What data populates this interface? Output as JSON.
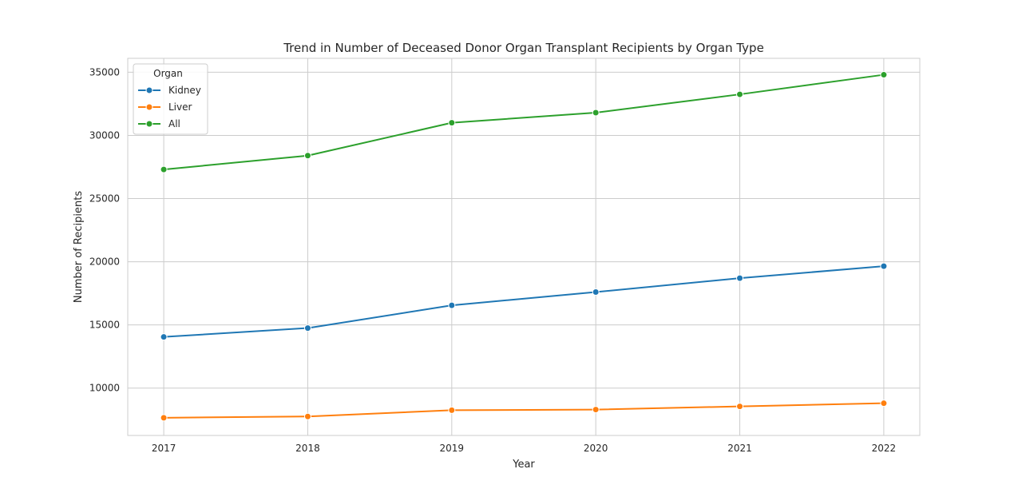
{
  "chart_data": {
    "type": "line",
    "title": "Trend in Number of Deceased Donor Organ Transplant Recipients by Organ Type",
    "xlabel": "Year",
    "ylabel": "Number of Recipients",
    "x": [
      2017,
      2018,
      2019,
      2020,
      2021,
      2022
    ],
    "x_tick_labels": [
      "2017",
      "2018",
      "2019",
      "2020",
      "2021",
      "2022"
    ],
    "xlim": [
      2016.75,
      2022.25
    ],
    "ylim": [
      6250,
      36100
    ],
    "y_ticks": [
      10000,
      15000,
      20000,
      25000,
      30000,
      35000
    ],
    "y_tick_labels": [
      "10000",
      "15000",
      "20000",
      "25000",
      "30000",
      "35000"
    ],
    "grid": true,
    "legend": {
      "title": "Organ",
      "placement": "top-left"
    },
    "series": [
      {
        "name": "Kidney",
        "color": "#1f77b4",
        "values": [
          14050,
          14750,
          16550,
          17600,
          18700,
          19650
        ]
      },
      {
        "name": "Liver",
        "color": "#ff7f0e",
        "values": [
          7650,
          7750,
          8250,
          8300,
          8550,
          8800
        ]
      },
      {
        "name": "All",
        "color": "#2ca02c",
        "values": [
          27300,
          28400,
          31000,
          31800,
          33250,
          34800
        ]
      }
    ]
  }
}
